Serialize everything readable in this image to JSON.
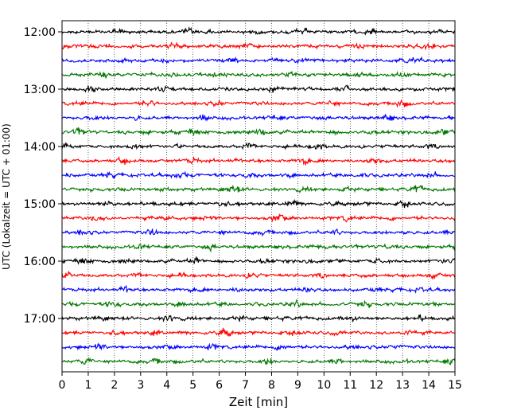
{
  "chart_data": {
    "type": "line",
    "title": "",
    "xlabel": "Zeit  [min]",
    "ylabel": "UTC (Lokalzeit = UTC + 01:00)",
    "xlim": [
      0,
      15
    ],
    "x_ticks": [
      "0",
      "1",
      "2",
      "3",
      "4",
      "5",
      "6",
      "7",
      "8",
      "9",
      "10",
      "11",
      "12",
      "13",
      "14",
      "15"
    ],
    "y_ticks": [
      "12:00",
      "13:00",
      "14:00",
      "15:00",
      "16:00",
      "17:00"
    ],
    "grid": "vertical dotted",
    "trace_start": "12:00",
    "trace_end": "17:45",
    "trace_interval_minutes": 15,
    "trace_colors": [
      "#000000",
      "#ff0000",
      "#0000ff",
      "#007700"
    ],
    "traces": [
      {
        "start": "12:00",
        "color": "#000000"
      },
      {
        "start": "12:15",
        "color": "#ff0000"
      },
      {
        "start": "12:30",
        "color": "#0000ff"
      },
      {
        "start": "12:45",
        "color": "#007700"
      },
      {
        "start": "13:00",
        "color": "#000000"
      },
      {
        "start": "13:15",
        "color": "#ff0000"
      },
      {
        "start": "13:30",
        "color": "#0000ff"
      },
      {
        "start": "13:45",
        "color": "#007700"
      },
      {
        "start": "14:00",
        "color": "#000000"
      },
      {
        "start": "14:15",
        "color": "#ff0000"
      },
      {
        "start": "14:30",
        "color": "#0000ff"
      },
      {
        "start": "14:45",
        "color": "#007700"
      },
      {
        "start": "15:00",
        "color": "#000000"
      },
      {
        "start": "15:15",
        "color": "#ff0000"
      },
      {
        "start": "15:30",
        "color": "#0000ff"
      },
      {
        "start": "15:45",
        "color": "#007700"
      },
      {
        "start": "16:00",
        "color": "#000000"
      },
      {
        "start": "16:15",
        "color": "#ff0000"
      },
      {
        "start": "16:30",
        "color": "#0000ff"
      },
      {
        "start": "16:45",
        "color": "#007700"
      },
      {
        "start": "17:00",
        "color": "#000000"
      },
      {
        "start": "17:15",
        "color": "#ff0000"
      },
      {
        "start": "17:30",
        "color": "#0000ff"
      },
      {
        "start": "17:45",
        "color": "#007700"
      }
    ]
  }
}
